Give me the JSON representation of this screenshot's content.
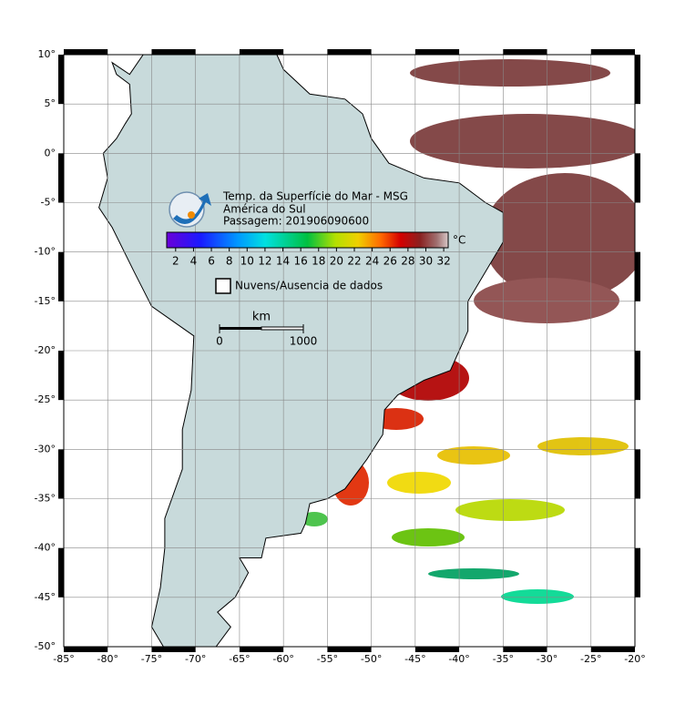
{
  "map": {
    "title": "Temp. da Superfície do Mar - MSG",
    "subtitle": "América do Sul",
    "pass": "Passagem: 201906090600",
    "colorbar": {
      "unit": "°C",
      "lim": [
        1,
        32.5
      ],
      "ticks": [
        2,
        4,
        6,
        8,
        10,
        12,
        14,
        16,
        18,
        20,
        22,
        24,
        26,
        28,
        30,
        32
      ]
    },
    "clouds_legend": "Nuvens/Ausencia de dados",
    "scale": {
      "title": "km",
      "start": "0",
      "end": "1000"
    },
    "lonlim": [
      -85,
      -20
    ],
    "latlim": [
      -50,
      10
    ],
    "lon_ticks": [
      {
        "value": -85,
        "label": "-85°"
      },
      {
        "value": -80,
        "label": "-80°"
      },
      {
        "value": -75,
        "label": "-75°"
      },
      {
        "value": -70,
        "label": "-70°"
      },
      {
        "value": -65,
        "label": "-65°"
      },
      {
        "value": -60,
        "label": "-60°"
      },
      {
        "value": -55,
        "label": "-55°"
      },
      {
        "value": -50,
        "label": "-50°"
      },
      {
        "value": -45,
        "label": "-45°"
      },
      {
        "value": -40,
        "label": "-40°"
      },
      {
        "value": -35,
        "label": "-35°"
      },
      {
        "value": -30,
        "label": "-30°"
      },
      {
        "value": -25,
        "label": "-25°"
      },
      {
        "value": -20,
        "label": "-20°"
      }
    ],
    "lat_ticks": [
      {
        "value": 10,
        "label": "10°"
      },
      {
        "value": 5,
        "label": "5°"
      },
      {
        "value": 0,
        "label": "0°"
      },
      {
        "value": -5,
        "label": "-5°"
      },
      {
        "value": -10,
        "label": "-10°"
      },
      {
        "value": -15,
        "label": "-15°"
      },
      {
        "value": -20,
        "label": "-20°"
      },
      {
        "value": -25,
        "label": "-25°"
      },
      {
        "value": -30,
        "label": "-30°"
      },
      {
        "value": -35,
        "label": "-35°"
      },
      {
        "value": -40,
        "label": "-40°"
      },
      {
        "value": -45,
        "label": "-45°"
      },
      {
        "value": -50,
        "label": "-50°"
      }
    ]
  }
}
